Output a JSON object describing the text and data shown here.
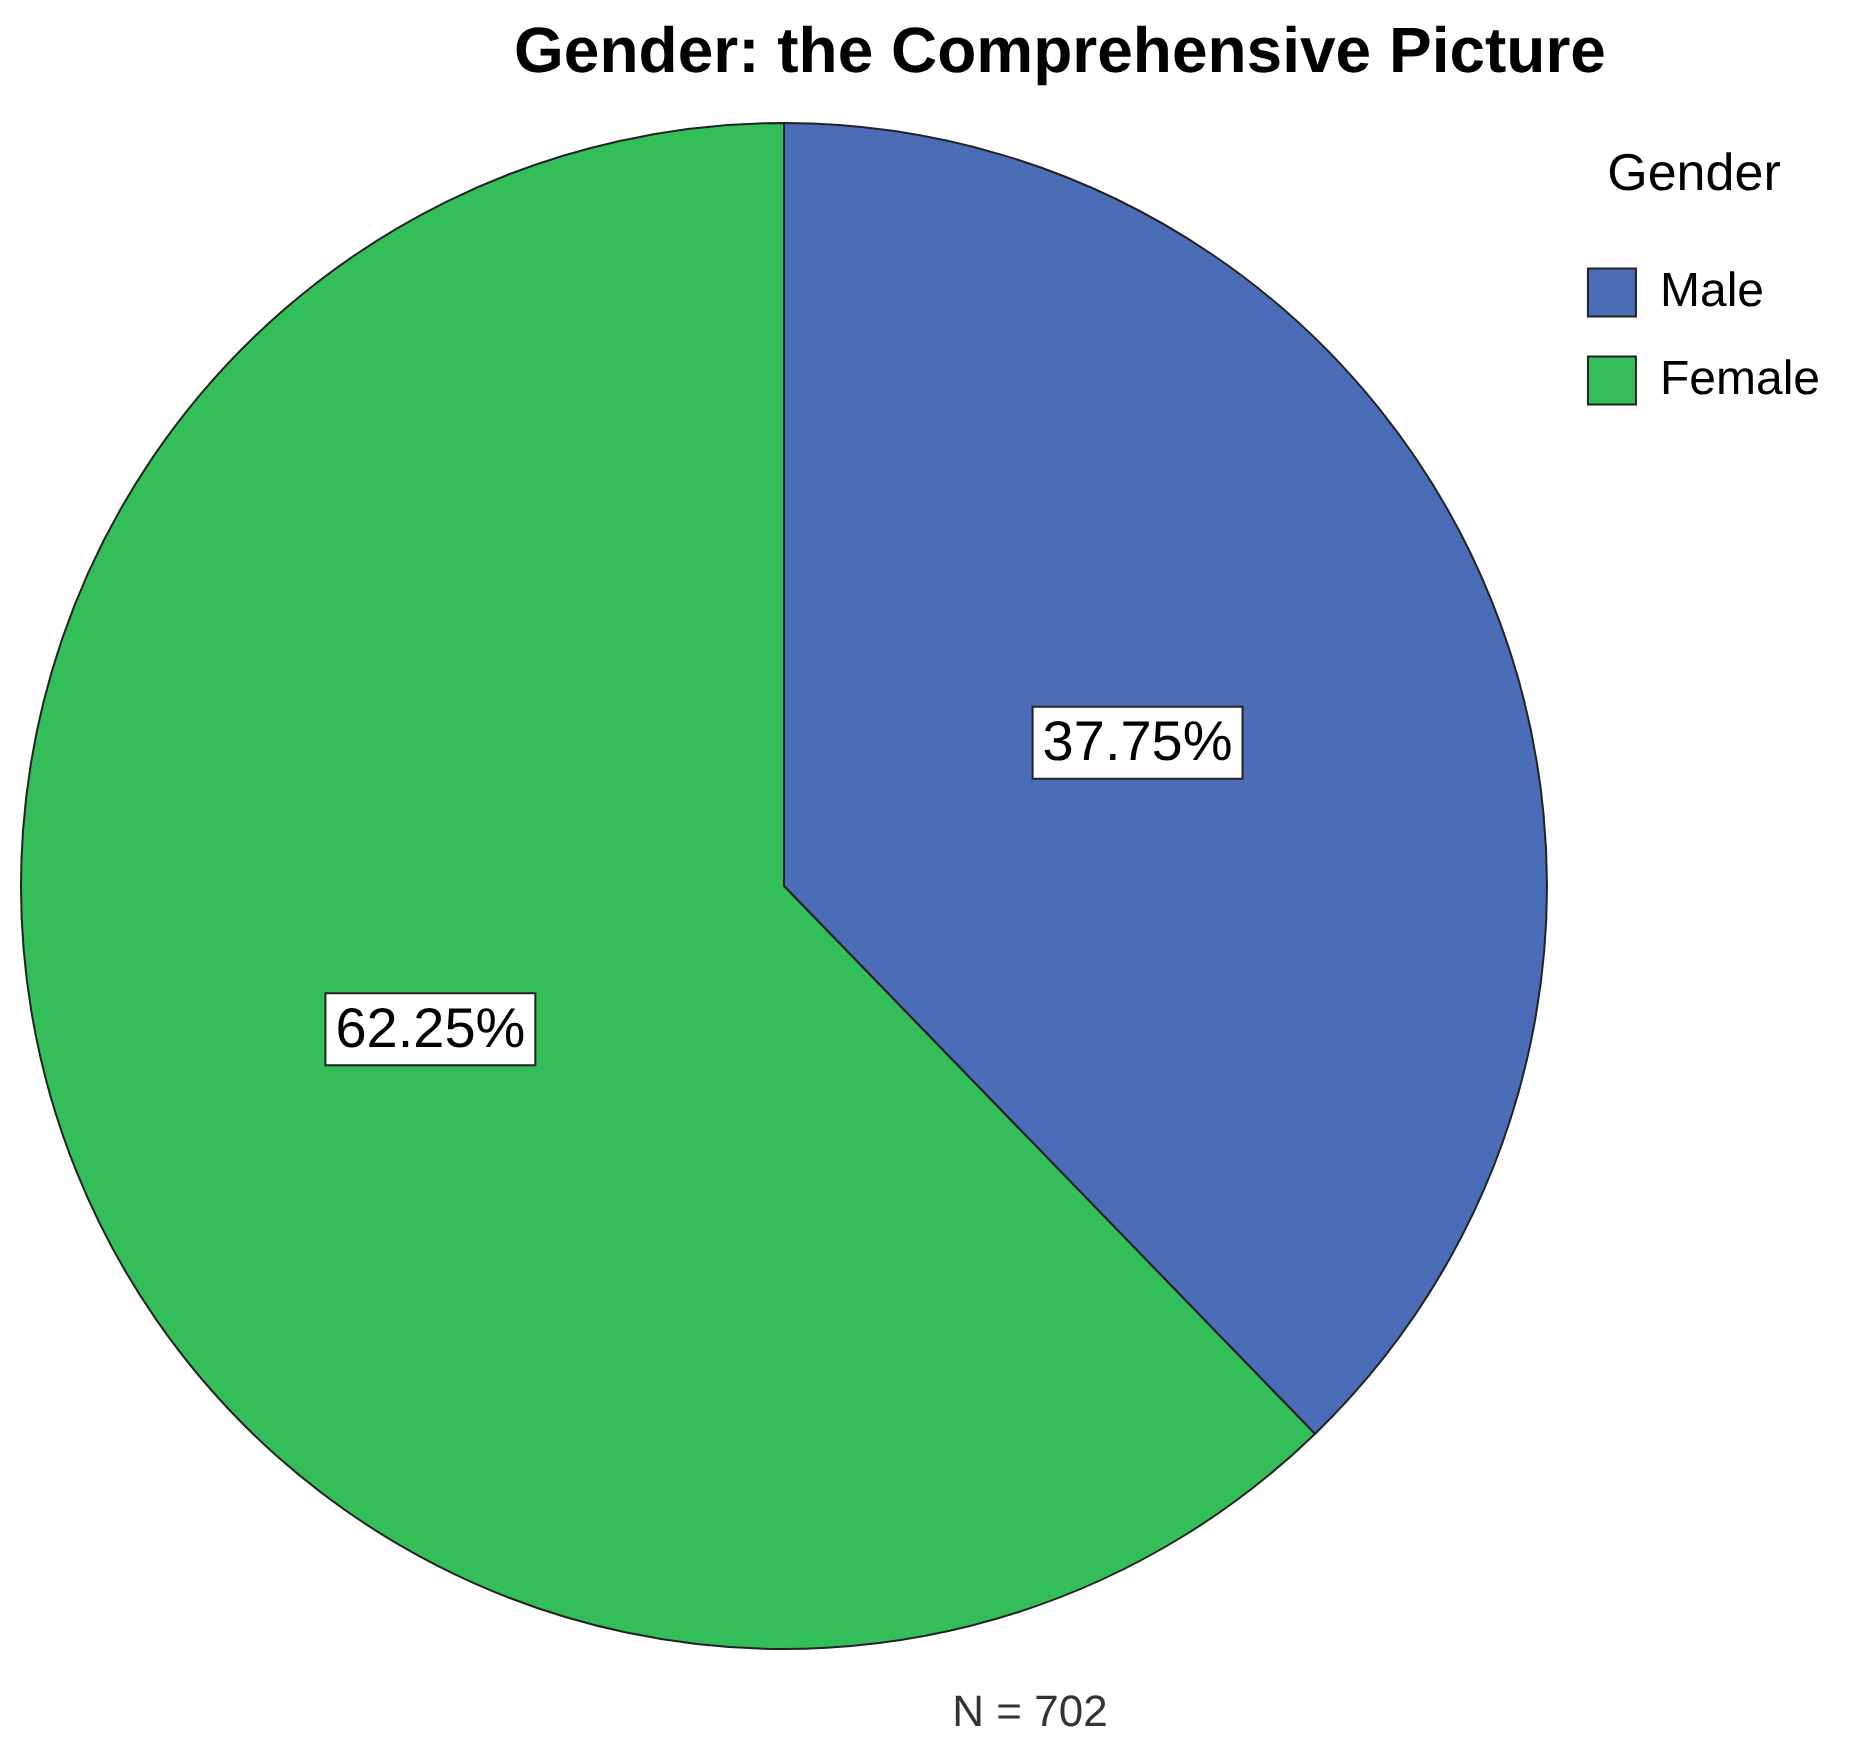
{
  "chart_data": {
    "type": "pie",
    "title": "Gender: the Comprehensive Picture",
    "legend_title": "Gender",
    "categories": [
      "Male",
      "Female"
    ],
    "values": [
      37.75,
      62.25
    ],
    "colors": [
      "#4b6cb7",
      "#33be5a"
    ],
    "value_labels": [
      "37.75%",
      "62.25%"
    ],
    "legend": "top right",
    "annotations": [
      "N = 702"
    ]
  }
}
